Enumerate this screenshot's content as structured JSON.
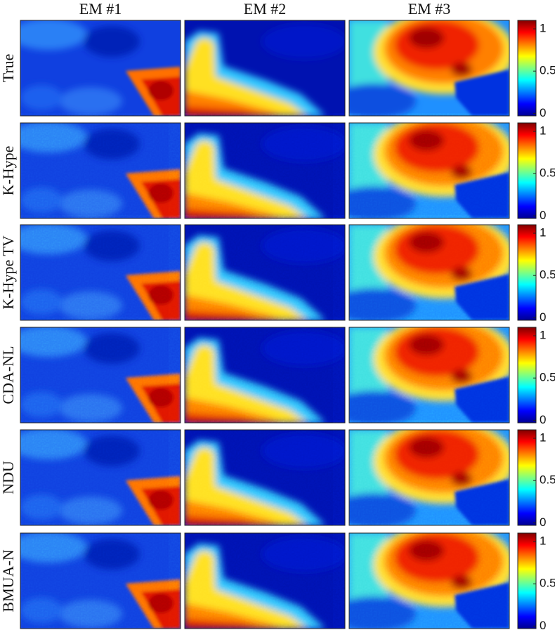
{
  "columns": [
    "EM #1",
    "EM #2",
    "EM #3"
  ],
  "rows": [
    "True",
    "K-Hype",
    "K-Hype TV",
    "CDA-NL",
    "NDU",
    "BMUA-N"
  ],
  "colorbar": {
    "lim": [
      -0.03,
      1.1
    ],
    "ticks": [
      0,
      0.5,
      1
    ]
  }
}
